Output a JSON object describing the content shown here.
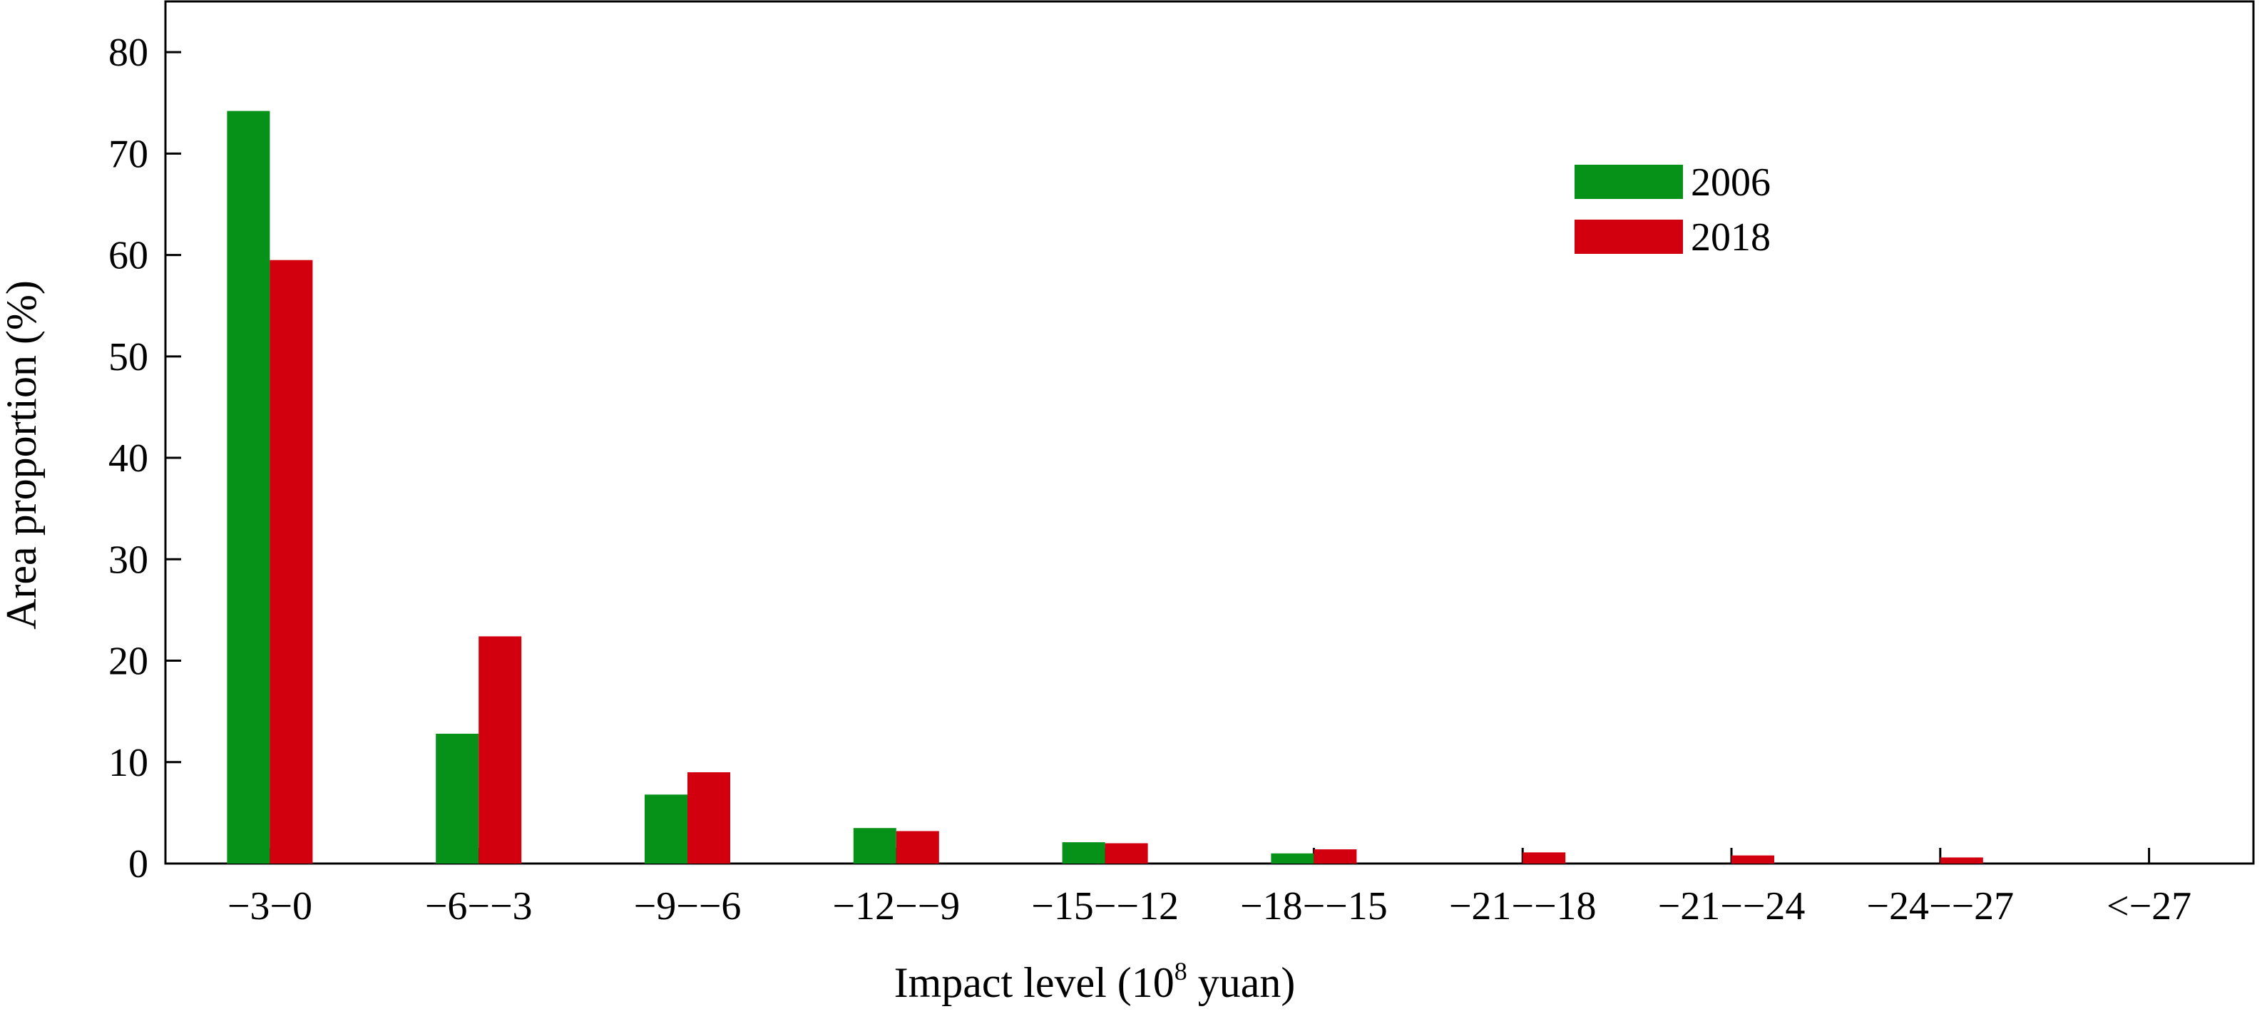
{
  "chart_data": {
    "type": "bar",
    "title": "",
    "xlabel": "Impact level (10",
    "xlabel_sup": "8",
    "xlabel_suffix": " yuan)",
    "ylabel": "Area proportion (%)",
    "ylim": [
      0,
      85
    ],
    "yticks": [
      0,
      10,
      20,
      30,
      40,
      50,
      60,
      70,
      80
    ],
    "grid": false,
    "legend_position": "top-right",
    "categories": [
      "−3−0",
      "−6−−3",
      "−9−−6",
      "−12−−9",
      "−15−−12",
      "−18−−15",
      "−21−−18",
      "−21−−24",
      "−24−−27",
      "<−27"
    ],
    "series": [
      {
        "name": "2006",
        "color": "#069118",
        "values": [
          74.2,
          12.8,
          6.8,
          3.5,
          2.1,
          1.0,
          0,
          0,
          0,
          0
        ]
      },
      {
        "name": "2018",
        "color": "#d2000f",
        "values": [
          59.5,
          22.4,
          9.0,
          3.2,
          2.0,
          1.4,
          1.1,
          0.8,
          0.6,
          0
        ]
      }
    ]
  }
}
